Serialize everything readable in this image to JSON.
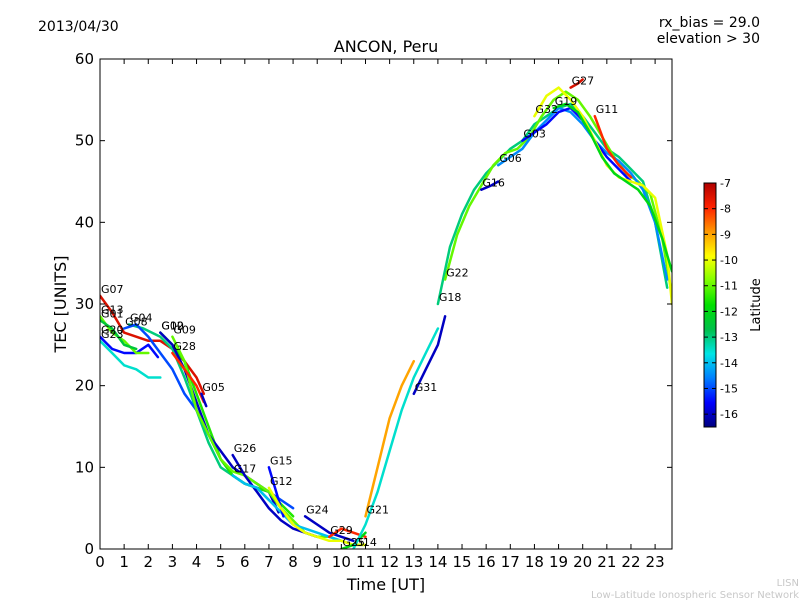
{
  "header": {
    "date": "2013/04/30",
    "rx_bias": "rx_bias = 29.0",
    "elevation": "elevation > 30"
  },
  "footer": {
    "line1": "LISN",
    "line2": "Low-Latitude Ionospheric Sensor Network"
  },
  "colorbar": {
    "label": "Latitude",
    "ticks": [
      "-7",
      "-8",
      "-9",
      "-10",
      "-11",
      "-12",
      "-13",
      "-14",
      "-15",
      "-16"
    ],
    "tick_values": [
      -7,
      -8,
      -9,
      -10,
      -11,
      -12,
      -13,
      -14,
      -15,
      -16
    ],
    "range": [
      -16.5,
      -7
    ],
    "colormap": [
      "#00007f",
      "#0000ff",
      "#007fff",
      "#00e5e5",
      "#00c04a",
      "#00e000",
      "#7fff00",
      "#ffff00",
      "#ff9900",
      "#ff2200",
      "#b00000"
    ]
  },
  "chart_data": {
    "type": "line",
    "title": "ANCON, Peru",
    "xlabel": "Time [UT]",
    "ylabel": "TEC [UNITS]",
    "xlim": [
      0,
      23.7
    ],
    "ylim": [
      0,
      60
    ],
    "xticks": [
      0,
      1,
      2,
      3,
      4,
      5,
      6,
      7,
      8,
      9,
      10,
      11,
      12,
      13,
      14,
      15,
      16,
      17,
      18,
      19,
      20,
      21,
      22,
      23
    ],
    "yticks": [
      0,
      10,
      20,
      30,
      40,
      50,
      60
    ],
    "grid": false,
    "series": [
      {
        "name": "G07",
        "lat": -7.5,
        "x": [
          0,
          0.5,
          1,
          1.5,
          2,
          2.5,
          3,
          3.5,
          4,
          4.3
        ],
        "y": [
          31,
          29,
          26.5,
          26,
          25.5,
          25.5,
          24.5,
          23,
          21,
          19
        ]
      },
      {
        "name": "G20",
        "lat": -15.5,
        "x": [
          0,
          0.5,
          1,
          1.5,
          2,
          2.4
        ],
        "y": [
          26,
          24.5,
          24,
          24,
          25,
          23.5
        ]
      },
      {
        "name": "G23",
        "lat": -13.5,
        "x": [
          0,
          0.5,
          1,
          1.5,
          2,
          2.5
        ],
        "y": [
          25.5,
          24,
          22.5,
          22,
          21,
          21
        ]
      },
      {
        "name": "G13",
        "lat": -11,
        "x": [
          0,
          0.5,
          1,
          1.5,
          2
        ],
        "y": [
          28.5,
          26.5,
          25.5,
          24,
          24
        ]
      },
      {
        "name": "G01",
        "lat": -12.5,
        "x": [
          0,
          0.5,
          1,
          1.5
        ],
        "y": [
          28,
          27,
          25,
          24.5
        ]
      },
      {
        "name": "G04",
        "lat": -13,
        "x": [
          1.2,
          1.8,
          2.5,
          3,
          3.5,
          4,
          4.5,
          5,
          5.5,
          6,
          6.5,
          7
        ],
        "y": [
          27.5,
          27,
          26,
          24.5,
          21,
          17,
          13,
          10,
          9,
          8,
          7.5,
          6
        ]
      },
      {
        "name": "G08",
        "lat": -15,
        "x": [
          1,
          1.5,
          2,
          2.5,
          3,
          3.5,
          4,
          4.5,
          5,
          5.5,
          6,
          6.5,
          7,
          7.5,
          8
        ],
        "y": [
          27,
          27.5,
          26,
          24,
          22,
          19,
          17,
          14,
          11,
          9,
          8,
          7.5,
          7,
          6,
          5
        ]
      },
      {
        "name": "G10",
        "lat": -11.5,
        "x": [
          2.5,
          3,
          3.5,
          4,
          4.5,
          5,
          5.5,
          6,
          6.5,
          7,
          7.5,
          8
        ],
        "y": [
          26.5,
          25,
          23,
          19,
          15,
          11,
          9,
          8,
          7.5,
          7,
          5.5,
          4
        ]
      },
      {
        "name": "G02",
        "lat": -16,
        "x": [
          2.5,
          3,
          3.5,
          4,
          4.5,
          5,
          5.5,
          6,
          6.5,
          7,
          7.4
        ],
        "y": [
          26.5,
          25,
          22,
          18,
          14,
          12,
          10,
          9,
          8,
          7,
          4.5
        ]
      },
      {
        "name": "G09",
        "lat": -11,
        "x": [
          3,
          3.5,
          4,
          4.5,
          5,
          5.5,
          6,
          6.5,
          7,
          7.5,
          8,
          8.5,
          9,
          9.5,
          10,
          10.5,
          11
        ],
        "y": [
          26,
          23,
          17,
          14,
          11,
          9.5,
          9,
          8,
          7,
          5,
          3.5,
          2,
          1.5,
          1.5,
          1,
          0.5,
          0.5
        ]
      },
      {
        "name": "G28",
        "lat": -8,
        "x": [
          3,
          3.5,
          4,
          4.3
        ],
        "y": [
          24,
          22,
          20,
          18
        ]
      },
      {
        "name": "G05",
        "lat": -16,
        "x": [
          4.2,
          4.4
        ],
        "y": [
          19,
          17.5
        ]
      },
      {
        "name": "G26",
        "lat": -16,
        "x": [
          5.5,
          6,
          6.5,
          7,
          7.5,
          8,
          8.5,
          9
        ],
        "y": [
          11.5,
          9,
          7,
          5,
          3.5,
          2.5,
          2,
          1.5
        ]
      },
      {
        "name": "G17",
        "lat": -14,
        "x": [
          5.5,
          6,
          6.5,
          7,
          7.5,
          8,
          8.5,
          9,
          9.5,
          10
        ],
        "y": [
          9,
          8,
          7.5,
          6,
          4.5,
          3,
          2.5,
          2,
          1.5,
          1
        ]
      },
      {
        "name": "G15",
        "lat": -15.5,
        "x": [
          7,
          7.3,
          7.6
        ],
        "y": [
          10,
          7,
          4
        ]
      },
      {
        "name": "G12",
        "lat": -10,
        "x": [
          7,
          7.5,
          8,
          8.5,
          9,
          9.5,
          10,
          10.5,
          11
        ],
        "y": [
          7.5,
          5,
          3,
          2,
          1.5,
          1,
          1,
          0.5,
          0.5
        ]
      },
      {
        "name": "G24",
        "lat": -16,
        "x": [
          8.5,
          9,
          9.5,
          10,
          10.5
        ],
        "y": [
          4,
          3,
          2,
          1.5,
          1
        ]
      },
      {
        "name": "G29",
        "lat": -8,
        "x": [
          9.5,
          10,
          10.5,
          11
        ],
        "y": [
          1.5,
          2.5,
          2,
          1.5
        ]
      },
      {
        "name": "G25",
        "lat": -12,
        "x": [
          10,
          10.5,
          11
        ],
        "y": [
          0,
          0.5,
          2
        ]
      },
      {
        "name": "G14",
        "lat": -13.5,
        "x": [
          10.5,
          11,
          11.5,
          12,
          12.5,
          13,
          13.5,
          14
        ],
        "y": [
          0,
          3,
          7,
          12,
          17,
          21,
          24,
          27
        ]
      },
      {
        "name": "G21",
        "lat": -9,
        "x": [
          11,
          11.5,
          12,
          12.5,
          13
        ],
        "y": [
          4,
          10,
          16,
          20,
          23
        ]
      },
      {
        "name": "G31",
        "lat": -16,
        "x": [
          13,
          13.5,
          14,
          14.3
        ],
        "y": [
          19,
          22,
          25,
          28.5
        ]
      },
      {
        "name": "G18",
        "lat": -13,
        "x": [
          14,
          14.5,
          15,
          15.5,
          16,
          16.5,
          17,
          17.5,
          18,
          18.5,
          19,
          19.5,
          20,
          20.5,
          21,
          21.5,
          22,
          22.5,
          23,
          23.5
        ],
        "y": [
          30,
          37,
          41,
          44,
          46,
          47.5,
          49,
          50,
          52,
          53,
          54,
          54.5,
          53,
          51,
          49,
          48,
          46.5,
          45,
          40,
          32
        ]
      },
      {
        "name": "G22",
        "lat": -11,
        "x": [
          14.3,
          14.8,
          15.3,
          15.8,
          16.3,
          16.8,
          17.3,
          17.8,
          18.3,
          18.8,
          19.3,
          19.8,
          20.3,
          20.8,
          21.3,
          21.8,
          22.3,
          22.8,
          23.3,
          23.7
        ],
        "y": [
          33,
          38.5,
          42,
          44.5,
          47,
          48.5,
          49,
          50.5,
          53,
          55,
          56,
          55,
          53,
          50.5,
          48,
          46,
          45,
          43.5,
          38,
          31
        ]
      },
      {
        "name": "G16",
        "lat": -16,
        "x": [
          15.8,
          16.2,
          16.5
        ],
        "y": [
          44,
          44.5,
          45
        ]
      },
      {
        "name": "G06",
        "lat": -14.5,
        "x": [
          16.5,
          17,
          17.5,
          18,
          18.5,
          19,
          19.5,
          20,
          20.5,
          21,
          21.5,
          22,
          22.5,
          23,
          23.5
        ],
        "y": [
          47,
          48,
          49,
          51,
          52.5,
          54,
          53.5,
          52,
          50,
          48.5,
          47.5,
          46,
          44,
          40,
          33
        ]
      },
      {
        "name": "G03",
        "lat": -15.5,
        "x": [
          17.5,
          18,
          18.5,
          19,
          19.5,
          20,
          20.5,
          21,
          21.5,
          22
        ],
        "y": [
          50,
          51,
          52,
          53.5,
          54,
          52.5,
          50,
          48,
          46.5,
          45
        ]
      },
      {
        "name": "G32",
        "lat": -10,
        "x": [
          18,
          18.5,
          19,
          19.5,
          20,
          20.5,
          21,
          21.5,
          22,
          22.5,
          23,
          23.5,
          23.7
        ],
        "y": [
          53,
          55.5,
          56.5,
          55,
          53,
          50,
          47,
          45.5,
          45,
          44.5,
          43,
          36,
          30
        ]
      },
      {
        "name": "G19",
        "lat": -12,
        "x": [
          18.8,
          19.3,
          19.8,
          20.3,
          20.8,
          21.3,
          21.8,
          22.3,
          22.8,
          23.3,
          23.7
        ],
        "y": [
          54,
          54.5,
          53.5,
          51,
          48,
          46,
          45,
          44,
          42,
          38,
          34
        ]
      },
      {
        "name": "G27",
        "lat": -7.5,
        "x": [
          19.5,
          19.8,
          20
        ],
        "y": [
          56.5,
          57,
          57.5
        ]
      },
      {
        "name": "G11",
        "lat": -8,
        "x": [
          20.5,
          21,
          21.5,
          22
        ],
        "y": [
          53,
          49,
          47,
          45.5
        ]
      }
    ]
  }
}
